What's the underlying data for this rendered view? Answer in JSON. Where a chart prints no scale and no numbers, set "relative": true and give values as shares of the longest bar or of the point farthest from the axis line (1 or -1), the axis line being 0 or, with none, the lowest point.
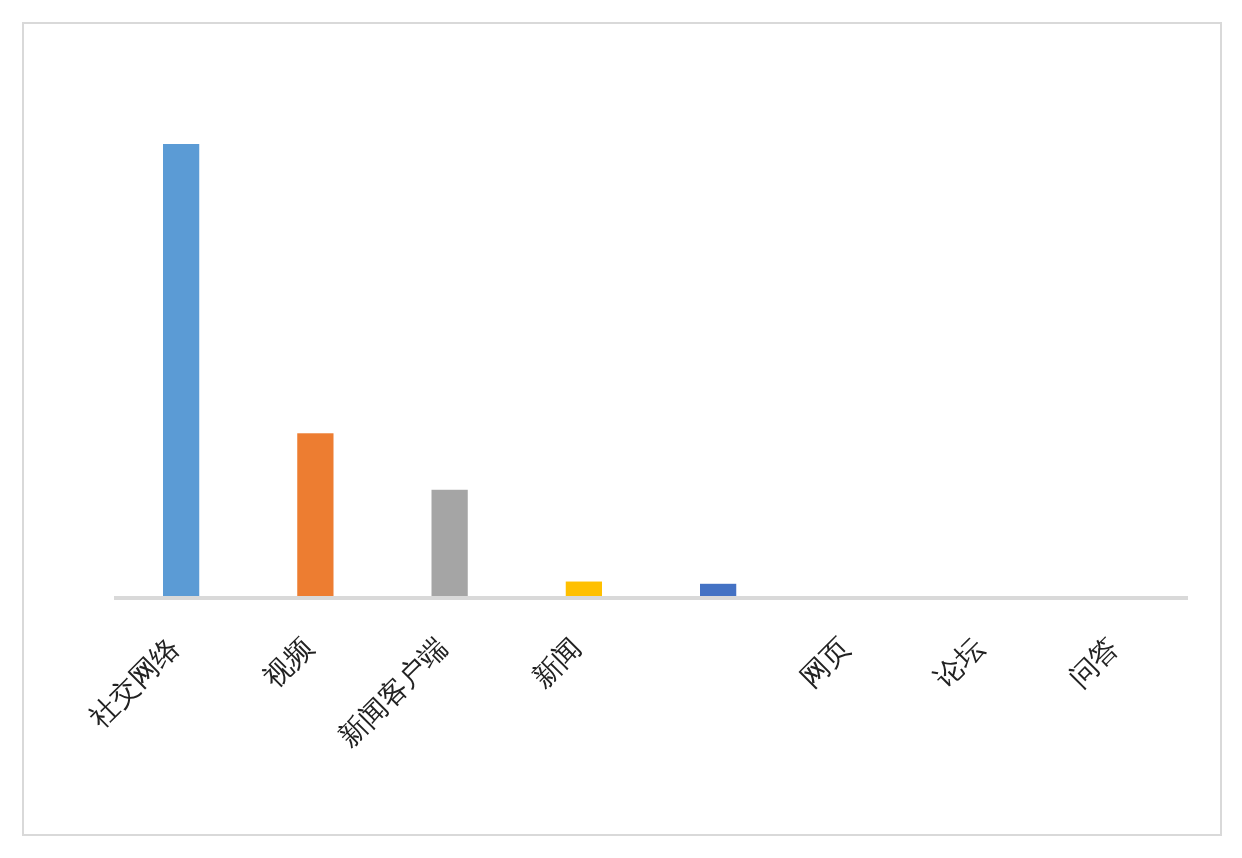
{
  "chart_data": {
    "type": "bar",
    "relative": true,
    "categories": [
      "社交网络",
      "视频",
      "新闻客户端",
      "新闻",
      null,
      "网页",
      "论坛",
      "问答"
    ],
    "values": [
      1,
      0.36,
      0.235,
      0.032,
      0.027,
      0,
      0,
      0
    ],
    "colors": [
      "#5b9bd5",
      "#ed7d31",
      "#a5a5a5",
      "#ffc000",
      "#4472c4",
      null,
      null,
      null
    ]
  }
}
